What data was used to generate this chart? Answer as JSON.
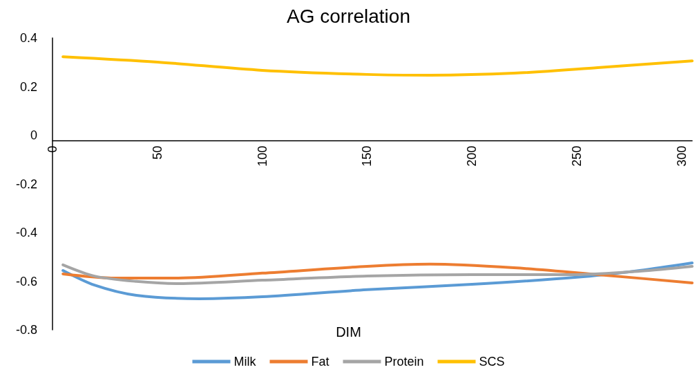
{
  "chart_data": {
    "type": "line",
    "title": "AG correlation",
    "xlabel": "DIM",
    "xlim": [
      0,
      305
    ],
    "xticks": [
      0,
      50,
      100,
      150,
      200,
      250,
      300
    ],
    "ylim": [
      -0.8,
      0.4
    ],
    "yticks": [
      -0.8,
      -0.6,
      -0.4,
      -0.2,
      0,
      0.2,
      0.4
    ],
    "grid": false,
    "legend": "bottom",
    "marker": "none",
    "line_style": "solid",
    "series": [
      {
        "name": "Milk",
        "color": "#5b9bd5",
        "x": [
          5,
          20,
          40,
          70,
          100,
          150,
          200,
          250,
          280,
          305
        ],
        "values": [
          -0.556,
          -0.616,
          -0.658,
          -0.672,
          -0.664,
          -0.635,
          -0.613,
          -0.584,
          -0.556,
          -0.525
        ]
      },
      {
        "name": "Fat",
        "color": "#ed7d31",
        "x": [
          5,
          30,
          60,
          100,
          150,
          180,
          220,
          260,
          305
        ],
        "values": [
          -0.57,
          -0.587,
          -0.587,
          -0.567,
          -0.539,
          -0.53,
          -0.545,
          -0.573,
          -0.607
        ]
      },
      {
        "name": "Protein",
        "color": "#a5a5a5",
        "x": [
          5,
          20,
          40,
          60,
          100,
          150,
          200,
          250,
          280,
          305
        ],
        "values": [
          -0.533,
          -0.579,
          -0.601,
          -0.61,
          -0.596,
          -0.579,
          -0.573,
          -0.573,
          -0.559,
          -0.539
        ]
      },
      {
        "name": "SCS",
        "color": "#ffc000",
        "x": [
          5,
          50,
          100,
          150,
          180,
          220,
          260,
          305
        ],
        "values": [
          0.323,
          0.301,
          0.267,
          0.25,
          0.247,
          0.255,
          0.278,
          0.306
        ]
      }
    ]
  }
}
